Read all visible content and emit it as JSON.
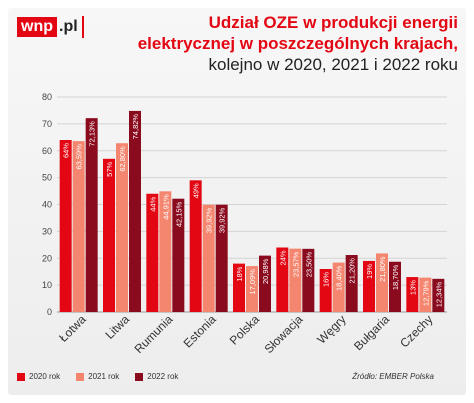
{
  "logo": {
    "box": "wnp",
    "suffix": ".pl"
  },
  "title": {
    "line1": "Udział OZE w produkcji energii",
    "line2": "elektrycznej w poszczególnych krajach,",
    "line3": "kolejno w 2020, 2021 i 2022 roku"
  },
  "source": "Źródło: EMBER Polska",
  "chart_data": {
    "type": "bar",
    "categories": [
      "Łotwa",
      "Litwa",
      "Rumunia",
      "Estonia",
      "Polska",
      "Słowacja",
      "Węgry",
      "Bułgaria",
      "Czechy"
    ],
    "series": [
      {
        "name": "2020 rok",
        "color": "#e30613",
        "values": [
          64,
          57,
          44,
          49,
          18,
          24,
          16,
          19,
          13
        ],
        "labels": [
          "64%",
          "57%",
          "44%",
          "49%",
          "18%",
          "24%",
          "16%",
          "19%",
          "13%"
        ]
      },
      {
        "name": "2021 rok",
        "color": "#f4866f",
        "values": [
          63.59,
          62.8,
          44.91,
          39.92,
          17.09,
          23.57,
          18.4,
          21.8,
          12.79
        ],
        "labels": [
          "63,59%",
          "62,80%",
          "44,91%",
          "39,92%",
          "17,09%",
          "23,57%",
          "18,40%",
          "21,80%",
          "12,79%"
        ]
      },
      {
        "name": "2022 rok",
        "color": "#8a0a1e",
        "values": [
          72.13,
          74.82,
          42.15,
          39.92,
          20.98,
          23.5,
          21.2,
          18.7,
          12.34
        ],
        "labels": [
          "72,13%",
          "74,82%",
          "42,15%",
          "39,92%",
          "20,98%",
          "23,50%",
          "21,20%",
          "18,70%",
          "12,34%"
        ]
      }
    ],
    "yticks": [
      0,
      10,
      20,
      30,
      40,
      50,
      60,
      70,
      80
    ],
    "ylim": [
      0,
      80
    ],
    "grid": true,
    "legend_position": "bottom-left"
  }
}
